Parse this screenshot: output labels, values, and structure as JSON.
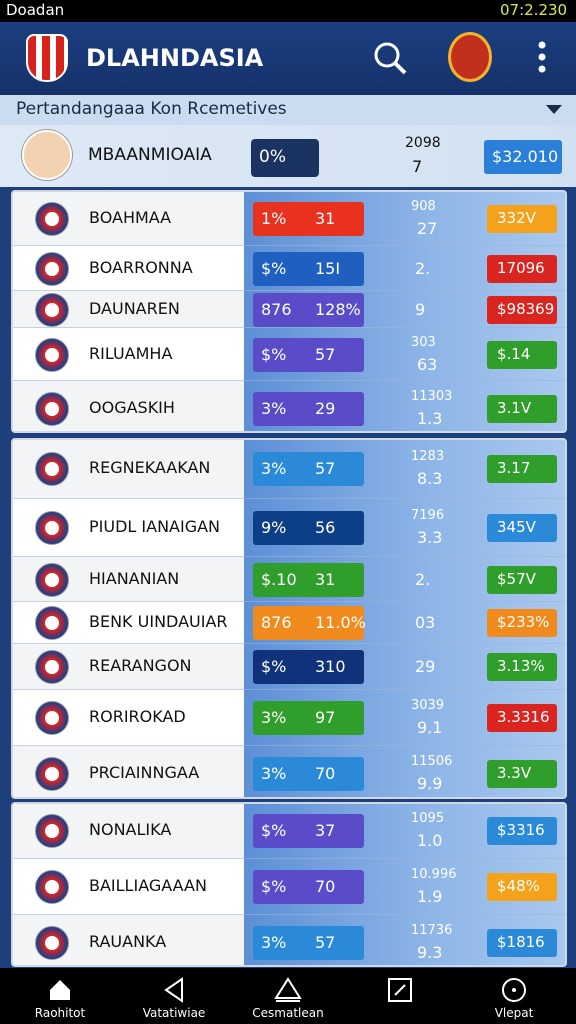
{
  "status_bar": {
    "carrier": "Doadan",
    "time": "07:2.230"
  },
  "header": {
    "title": "DLAHNDASIA"
  },
  "section_title": "Pertandangaaa Kon Rcemetives",
  "summary": {
    "name": "MBAANMIOAIA",
    "percent": "0%",
    "stat_top": "2098",
    "stat_bottom": "7",
    "amount": "$32.010"
  },
  "groups": [
    {
      "rows": [
        {
          "name": "BOAHMAA",
          "percent": "1%",
          "score": "31",
          "stat_top": "908",
          "stat_bottom": "27",
          "amount": "332V",
          "pill_color": "#e8321e",
          "amount_color": "#f4a21b"
        },
        {
          "name": "BOARRONNA",
          "percent": "$%",
          "score": "15I",
          "stat_bottom": "2.",
          "amount": "17096",
          "pill_color": "#1e5fbf",
          "amount_color": "#d9241f"
        },
        {
          "name": "DAUNAREN",
          "percent": "876",
          "score": "128%",
          "stat_bottom": "9",
          "amount": "$98369",
          "pill_color": "#5a4bc9",
          "amount_color": "#d9241f"
        },
        {
          "name": "RILUAMHA",
          "percent": "$%",
          "score": "57",
          "stat_top": "303",
          "stat_bottom": "63",
          "amount": "$.14",
          "pill_color": "#5a4bc9",
          "amount_color": "#2f9e2a"
        },
        {
          "name": "OOGASKIH",
          "percent": "3%",
          "score": "29",
          "stat_top": "11303",
          "stat_bottom": "1.3",
          "amount": "3.1V",
          "pill_color": "#5a4bc9",
          "amount_color": "#2f9e2a"
        }
      ]
    },
    {
      "rows": [
        {
          "name": "REGNEKAAKAN",
          "percent": "3%",
          "score": "57",
          "stat_top": "1283",
          "stat_bottom": "8.3",
          "amount": "3.17",
          "pill_color": "#2a8ad8",
          "amount_color": "#2f9e2a"
        },
        {
          "name": "PIUDL IANAIGAN",
          "percent": "9%",
          "score": "56",
          "stat_top": "7196",
          "stat_bottom": "3.3",
          "amount": "345V",
          "pill_color": "#0d3f86",
          "amount_color": "#2a8ad8"
        },
        {
          "name": "HIANANIAN",
          "percent": "$.10",
          "score": "31",
          "stat_bottom": "2.",
          "amount": "$57V",
          "pill_color": "#2f9e2a",
          "amount_color": "#2f9e2a"
        },
        {
          "name": "BENK UINDAUIAR",
          "percent": "876",
          "score": "11.0%",
          "stat_bottom": "03",
          "amount": "$233%",
          "pill_color": "#f08a1c",
          "amount_color": "#f08a1c"
        },
        {
          "name": "REARANGON",
          "percent": "$%",
          "score": "310",
          "stat_bottom": "29",
          "amount": "3.13%",
          "pill_color": "#10327a",
          "amount_color": "#2f9e2a"
        },
        {
          "name": "RORIROKAD",
          "percent": "3%",
          "score": "97",
          "stat_top": "3039",
          "stat_bottom": "9.1",
          "amount": "3.3316",
          "pill_color": "#2f9e2a",
          "amount_color": "#d9241f"
        },
        {
          "name": "PRCIAINNGAA",
          "percent": "3%",
          "score": "70",
          "stat_top": "11506",
          "stat_bottom": "9.9",
          "amount": "3.3V",
          "pill_color": "#2a8ad8",
          "amount_color": "#2f9e2a"
        }
      ]
    },
    {
      "rows": [
        {
          "name": "NONALIKA",
          "percent": "$%",
          "score": "37",
          "stat_top": "1095",
          "stat_bottom": "1.0",
          "amount": "$3316",
          "pill_color": "#5a4bc9",
          "amount_color": "#2a8ad8"
        },
        {
          "name": "BAILLIAGAAAN",
          "percent": "$%",
          "score": "70",
          "stat_top": "10.996",
          "stat_bottom": "1.9",
          "amount": "$48%",
          "pill_color": "#5a4bc9",
          "amount_color": "#f4a21b"
        },
        {
          "name": "RAUANKA",
          "percent": "3%",
          "score": "57",
          "stat_top": "11736",
          "stat_bottom": "9.3",
          "amount": "$1816",
          "pill_color": "#2a8ad8",
          "amount_color": "#2a8ad8"
        }
      ]
    }
  ],
  "nav": [
    {
      "label": "Raohitot"
    },
    {
      "label": "Vatatiwiae"
    },
    {
      "label": "Cesmatlean"
    },
    {
      "label": "Vlepat"
    }
  ]
}
